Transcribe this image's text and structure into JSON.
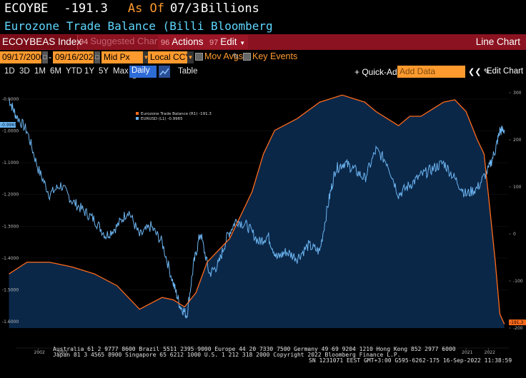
{
  "header": {
    "ticker_short": "ECOYBE",
    "value": "-191.3",
    "as_of_label": "As Of",
    "as_of_date": "07/3",
    "units": "Billions",
    "description": "Eurozone Trade Balance (Billi Bloomberg"
  },
  "toolbar": {
    "ticker": "ECOYBEAS Index",
    "suggested_num": "94",
    "suggested": "Suggested Charts",
    "actions_num": "96",
    "actions": "Actions",
    "edit_num": "97",
    "edit": "Edit",
    "chart_type": "Line Chart"
  },
  "controls": {
    "start_date": "09/17/2000",
    "end_date": "09/16/2022",
    "separator": "-",
    "price": "Mid Px",
    "currency": "Local CCY",
    "mov_avgs": "Mov Avgs",
    "key_events": "Key Events"
  },
  "ranges": [
    "1D",
    "3D",
    "1M",
    "6M",
    "YTD",
    "1Y",
    "5Y",
    "Max"
  ],
  "period": "Daily",
  "table_label": "Table",
  "quick_add": "+ Quick-Add",
  "add_data_placeholder": "Add Data",
  "edit_chart": "Edit Chart",
  "colors": {
    "orange_series": "#ff6a1a",
    "blue_series": "#6cb4f0",
    "area_fill": "#0a2748",
    "accent": "#ff9a2e",
    "toolbar_red": "#8b1220"
  },
  "chart_data": {
    "type": "line",
    "series": [
      {
        "name": "Eurozone Trade Balance (R1) -191.3",
        "axis": "right",
        "color": "#ff6a1a",
        "filled": true,
        "x": [
          2000.7,
          2001.5,
          2002.5,
          2003.5,
          2004.5,
          2005.5,
          2006.5,
          2007.5,
          2008.0,
          2008.5,
          2009.0,
          2009.5,
          2010.5,
          2011.5,
          2012.0,
          2012.5,
          2013.5,
          2014.5,
          2015.5,
          2016.5,
          2017.0,
          2017.5,
          2018.0,
          2018.5,
          2019.0,
          2019.5,
          2020.0,
          2020.5,
          2021.0,
          2021.5,
          2021.8,
          2022.0,
          2022.3,
          2022.5,
          2022.7
        ],
        "y": [
          -85,
          -60,
          -60,
          -70,
          -85,
          -110,
          -160,
          -135,
          -140,
          -155,
          -125,
          -60,
          -10,
          90,
          170,
          220,
          245,
          280,
          295,
          280,
          260,
          245,
          230,
          250,
          250,
          265,
          280,
          285,
          260,
          200,
          170,
          80,
          -60,
          -170,
          -191.3
        ]
      },
      {
        "name": "EURUSD (L1) -0.9965",
        "axis": "left",
        "color": "#6cb4f0",
        "filled": false,
        "x": [
          2000.7,
          2001.0,
          2001.5,
          2002.0,
          2002.5,
          2003.0,
          2003.5,
          2004.0,
          2004.5,
          2005.0,
          2005.5,
          2006.0,
          2006.5,
          2007.0,
          2007.5,
          2008.0,
          2008.3,
          2008.6,
          2008.9,
          2009.2,
          2009.6,
          2010.0,
          2010.4,
          2010.8,
          2011.3,
          2011.8,
          2012.2,
          2012.6,
          2013.0,
          2013.5,
          2014.0,
          2014.5,
          2014.9,
          2015.2,
          2015.6,
          2016.0,
          2016.5,
          2017.0,
          2017.5,
          2018.0,
          2018.5,
          2019.0,
          2019.5,
          2020.0,
          2020.5,
          2021.0,
          2021.5,
          2022.0,
          2022.3,
          2022.5,
          2022.7
        ],
        "y": [
          -0.9,
          -0.95,
          -1.0,
          -1.12,
          -1.2,
          -1.17,
          -1.22,
          -1.25,
          -1.28,
          -1.33,
          -1.3,
          -1.25,
          -1.33,
          -1.3,
          -1.35,
          -1.48,
          -1.55,
          -1.58,
          -1.42,
          -1.32,
          -1.45,
          -1.42,
          -1.33,
          -1.28,
          -1.3,
          -1.35,
          -1.33,
          -1.4,
          -1.38,
          -1.4,
          -1.36,
          -1.38,
          -1.22,
          -1.12,
          -1.1,
          -1.12,
          -1.15,
          -1.06,
          -1.1,
          -1.2,
          -1.17,
          -1.14,
          -1.12,
          -1.1,
          -1.15,
          -1.2,
          -1.18,
          -1.12,
          -1.06,
          -1.0,
          -0.9965
        ]
      }
    ],
    "left_axis": {
      "range": [
        -1.62,
        -0.88
      ],
      "ticks": [
        -0.9,
        -1.0,
        -1.1,
        -1.2,
        -1.3,
        -1.4,
        -1.5,
        -1.6
      ],
      "tick_labels": [
        "-0.9000",
        "-1.0000",
        "-1.1000",
        "-1.2000",
        "-1.3000",
        "-1.4000",
        "-1.5000",
        "-1.6000"
      ]
    },
    "right_axis": {
      "range": [
        -200,
        300
      ],
      "ticks": [
        300,
        200,
        100,
        0,
        -100,
        -200
      ],
      "tick_labels": [
        "300",
        "200",
        "100",
        "0",
        "-100",
        "-200"
      ]
    },
    "x_axis": {
      "range": [
        2001.0,
        2022.9
      ],
      "ticks": [
        2002,
        2003,
        2004,
        2005,
        2006,
        2007,
        2008,
        2009,
        2010,
        2011,
        2012,
        2013,
        2014,
        2015,
        2016,
        2017,
        2018,
        2019,
        2020,
        2021,
        2022
      ],
      "tick_labels": [
        "2002",
        "2003",
        "",
        "",
        "",
        "",
        "",
        "",
        "",
        "",
        "",
        "",
        "",
        "",
        "",
        "",
        "",
        "",
        "",
        "2021",
        "2022"
      ]
    },
    "last_labels": {
      "left": "-0.9965",
      "right": "-191.3"
    },
    "legend": {
      "position": "top-left",
      "entries": [
        "Eurozone Trade Balance (R1) -191.3",
        "EURUSD (L1) -0.9965"
      ]
    }
  },
  "footer": {
    "line1": "Australia 61 2 9777 8600 Brazil 5511 2395 9000 Europe 44 20 7330 7500 Germany 49 69 9204 1210 Hong Kong 852 2977 6000",
    "line2": "Japan 81 3 4565 8900     Singapore 65 6212 1000     U.S. 1 212 318 2000     Copyright 2022 Bloomberg Finance L.P.",
    "line3": "SN 1231071 EEST GMT+3:00 G595-6262-175 16-Sep-2022 11:38:59"
  }
}
